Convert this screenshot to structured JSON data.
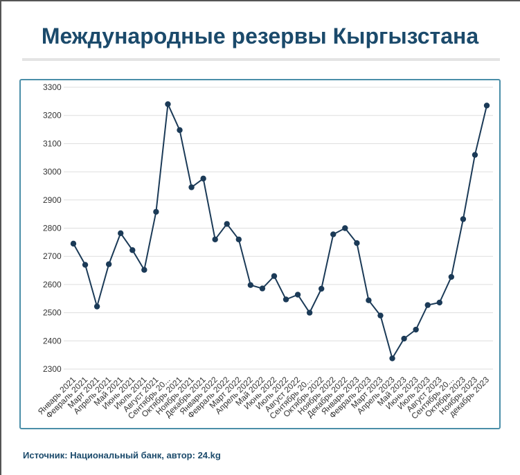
{
  "page": {
    "title": "Международные резервы Кыргызстана",
    "source": "Источник: Национальный банк, автор: 24.kg"
  },
  "colors": {
    "title": "#1b4a6b",
    "line": "#1b3a57",
    "marker": "#1b3a57",
    "grid": "#dddddd",
    "box_border": "#4a8ea8"
  },
  "chart_data": {
    "type": "line",
    "title": "",
    "xlabel": "",
    "ylabel": "",
    "ylim": [
      2300,
      3300
    ],
    "yticks": [
      2300,
      2400,
      2500,
      2600,
      2700,
      2800,
      2900,
      3000,
      3100,
      3200,
      3300
    ],
    "grid": true,
    "categories": [
      "Январь 2021",
      "Февраль 2021",
      "Март 2021",
      "Апрель 2021",
      "Май 2021",
      "Июнь 2021",
      "Июль 2021",
      "Август 2021",
      "Сентябрь 20...",
      "Октябрь 2021",
      "Ноябрь 2021",
      "Декабрь 2021",
      "Январь 2022",
      "Февраль 2022",
      "Март 2022",
      "Апрель 2022",
      "Май 2022",
      "Июнь 2022",
      "Июль 2022",
      "Август 2022",
      "Сентябрь 20...",
      "Октябрь 2022",
      "Ноябрь 2022",
      "Декабрь 2022",
      "Январь 2023",
      "Февраль 2023",
      "Март 2023",
      "Апрель 2023",
      "Май 2023",
      "Июнь 2023",
      "Июль 2023",
      "Август 2023",
      "Сентябрь 20...",
      "Октябрь 2023",
      "Ноябрь 2023",
      "декабрь 2023"
    ],
    "series": [
      {
        "values": [
          2745,
          2670,
          2522,
          2672,
          2782,
          2722,
          2652,
          2858,
          3240,
          3148,
          2945,
          2976,
          2760,
          2815,
          2760,
          2598,
          2586,
          2630,
          2547,
          2564,
          2500,
          2585,
          2778,
          2800,
          2747,
          2544,
          2490,
          2338,
          2408,
          2440,
          2527,
          2536,
          2627,
          2832,
          3060,
          3235
        ]
      }
    ]
  }
}
